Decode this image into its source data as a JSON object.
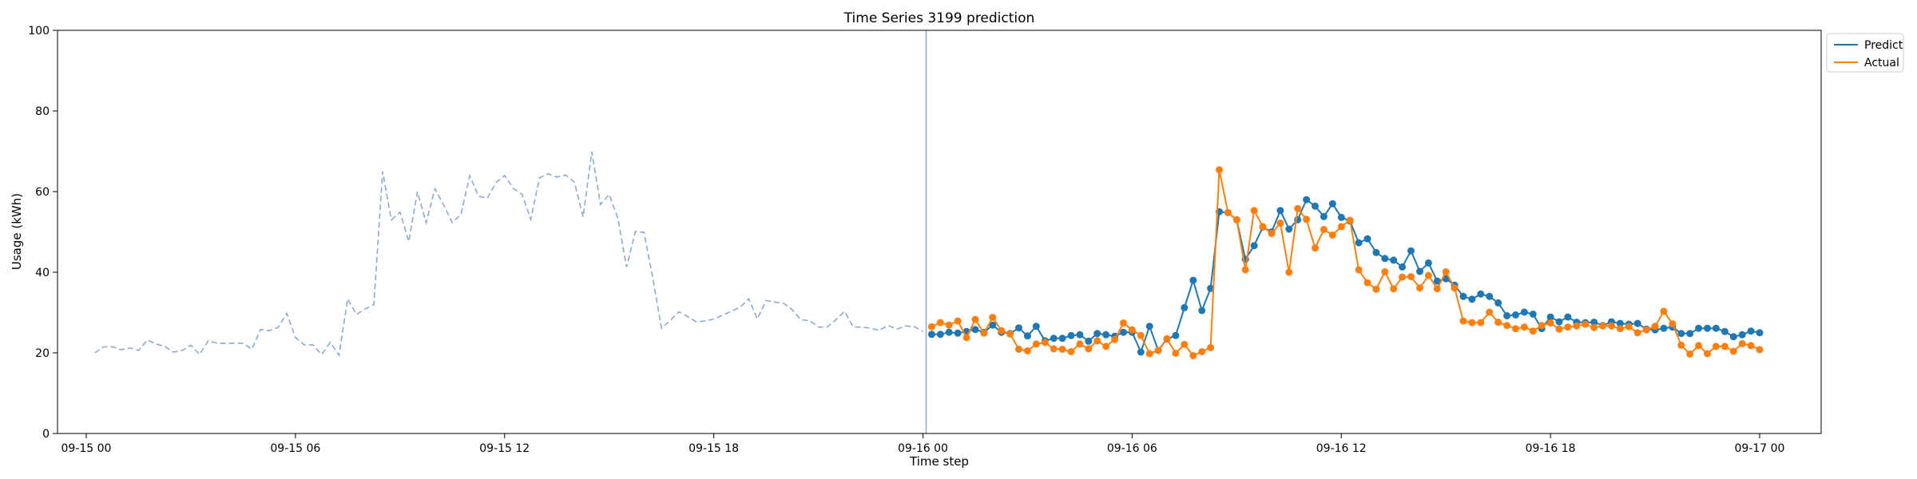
{
  "chart_data": {
    "type": "line",
    "title": "Time Series 3199 prediction",
    "xlabel": "Time step",
    "ylabel": "Usage (kWh)",
    "ylim": [
      0,
      100
    ],
    "yticks": [
      0,
      20,
      40,
      60,
      80,
      100
    ],
    "x_ticks": [
      {
        "label": "09-15 00",
        "hour": 0
      },
      {
        "label": "09-15 06",
        "hour": 6
      },
      {
        "label": "09-15 12",
        "hour": 12
      },
      {
        "label": "09-15 18",
        "hour": 18
      },
      {
        "label": "09-16 00",
        "hour": 24
      },
      {
        "label": "09-16 06",
        "hour": 30
      },
      {
        "label": "09-16 12",
        "hour": 36
      },
      {
        "label": "09-16 18",
        "hour": 42
      },
      {
        "label": "09-17 00",
        "hour": 48
      }
    ],
    "forecast_start_hour": 24.0,
    "legend": {
      "position": "top-right, outside plot",
      "entries": [
        "Predict",
        "Actual"
      ]
    },
    "grid": false,
    "series": [
      {
        "style": "dashed",
        "color": "#8fa9cc",
        "x_start_hour": 0.25,
        "x_step_hours": 0.25,
        "values": [
          20,
          21.5,
          21.5,
          20.8,
          21.2,
          20.6,
          23.2,
          22.2,
          21.6,
          20.2,
          20.6,
          21.9,
          19.6,
          23.0,
          22.4,
          22.4,
          22.4,
          22.4,
          20.9,
          25.8,
          25.5,
          26.3,
          29.8,
          23.8,
          22.0,
          22.0,
          19.6,
          22.6,
          19.4,
          33.4,
          29.5,
          30.9,
          32.0,
          65.0,
          53.0,
          54.9,
          47.6,
          60.0,
          52.3,
          60.7,
          56.7,
          52.3,
          54.4,
          63.9,
          58.9,
          58.3,
          62.2,
          64.0,
          60.8,
          59.3,
          53.1,
          63.4,
          64.4,
          63.6,
          64.1,
          62.4,
          53.7,
          69.9,
          56.8,
          59.3,
          53.3,
          41.3,
          50.1,
          49.9,
          38.6,
          26.1,
          28.0,
          30.2,
          29.0,
          27.7,
          27.9,
          28.4,
          29.3,
          30.3,
          31.3,
          33.4,
          28.4,
          33.0,
          32.6,
          32.3,
          30.7,
          28.2,
          28.0,
          26.4,
          26.4,
          28.2,
          30.3,
          26.4,
          26.4,
          26.1,
          25.6,
          26.8,
          25.9,
          26.7,
          26.5,
          25.3
        ]
      },
      {
        "name": "Predict",
        "color": "#1f77b4",
        "marker": "circle",
        "x_start_hour": 24.25,
        "x_step_hours": 0.25,
        "values": [
          24.6,
          24.6,
          25.1,
          24.9,
          25.3,
          25.8,
          25.1,
          26.9,
          25.1,
          24.8,
          26.2,
          24.2,
          26.6,
          23.0,
          23.6,
          23.6,
          24.3,
          24.5,
          22.9,
          24.8,
          24.5,
          24.1,
          25.1,
          25.1,
          20.2,
          26.6,
          20.6,
          23.4,
          24.3,
          31.2,
          38.0,
          30.5,
          36.0,
          55.0,
          54.8,
          53.0,
          43.2,
          46.6,
          51.2,
          50.0,
          55.3,
          50.7,
          53.0,
          58.0,
          56.4,
          53.8,
          57.0,
          53.6,
          52.7,
          47.3,
          48.3,
          44.9,
          43.4,
          43.0,
          41.3,
          45.3,
          40.2,
          42.3,
          37.8,
          38.4,
          36.8,
          34.0,
          33.3,
          34.6,
          34.0,
          32.4,
          29.2,
          29.4,
          30.1,
          29.6,
          26.0,
          28.9,
          27.7,
          28.9,
          27.6,
          27.5,
          27.6,
          26.8,
          27.7,
          27.3,
          27.1,
          27.3,
          25.9,
          25.7,
          26.1,
          26.4,
          24.8,
          24.8,
          26.1,
          26.1,
          26.1,
          25.3,
          24.0,
          24.5,
          25.4,
          25.0
        ]
      },
      {
        "name": "Actual",
        "color": "#ff7f0e",
        "marker": "circle",
        "x_start_hour": 24.25,
        "x_step_hours": 0.25,
        "values": [
          26.5,
          27.5,
          26.9,
          27.9,
          23.8,
          28.3,
          24.9,
          28.8,
          25.5,
          24.7,
          20.9,
          20.5,
          22.2,
          22.6,
          21.0,
          20.9,
          20.3,
          22.2,
          21.0,
          23.0,
          21.6,
          23.3,
          27.4,
          25.7,
          24.3,
          19.8,
          20.6,
          23.5,
          19.9,
          22.1,
          19.3,
          20.3,
          21.3,
          65.4,
          54.8,
          53.0,
          40.6,
          55.3,
          51.3,
          49.6,
          52.2,
          40.0,
          55.8,
          53.1,
          46.0,
          50.6,
          49.2,
          51.3,
          52.9,
          40.6,
          37.4,
          35.8,
          40.1,
          35.9,
          38.8,
          38.9,
          36.1,
          39.2,
          35.9,
          40.1,
          36.1,
          27.9,
          27.5,
          27.5,
          30.1,
          27.6,
          26.8,
          26.0,
          26.4,
          25.4,
          26.8,
          27.4,
          25.9,
          26.4,
          26.7,
          27.1,
          26.3,
          26.7,
          26.7,
          26.0,
          26.5,
          25.0,
          25.7,
          26.6,
          30.3,
          27.2,
          21.9,
          19.7,
          21.8,
          19.8,
          21.6,
          21.6,
          20.4,
          22.3,
          21.8,
          20.8
        ]
      }
    ]
  }
}
